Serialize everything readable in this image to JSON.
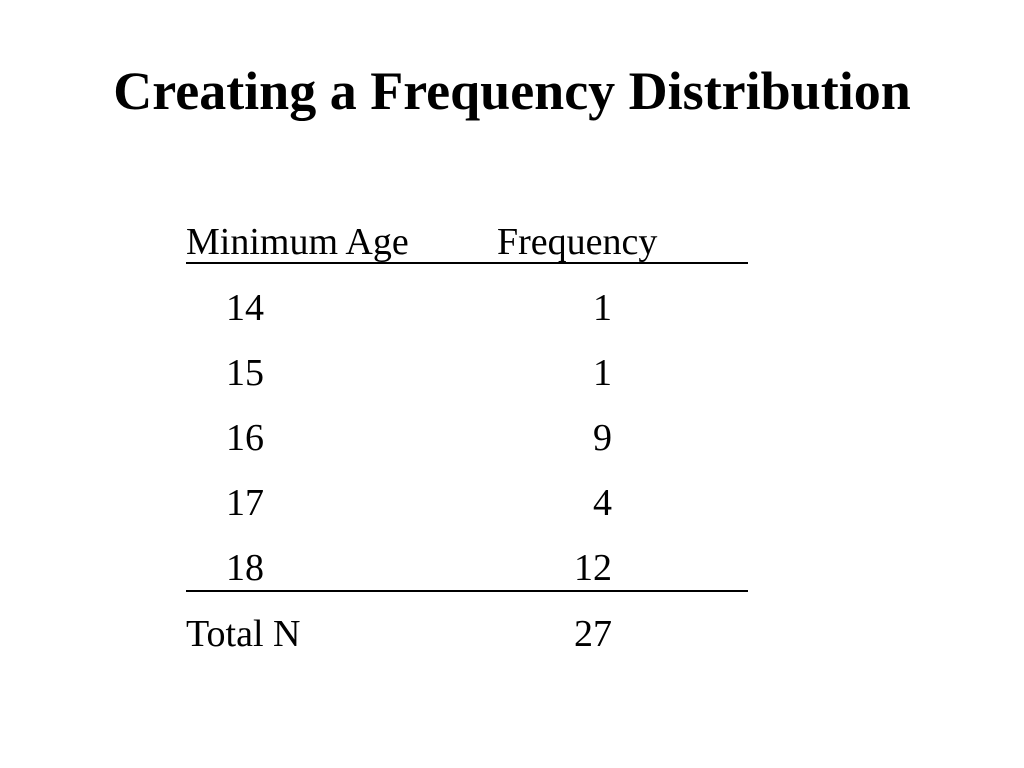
{
  "title": "Creating a Frequency Distribution",
  "table": {
    "header": [
      "Minimum Age",
      "Frequency"
    ],
    "rows": [
      [
        "14",
        "1"
      ],
      [
        "15",
        "1"
      ],
      [
        "16",
        "9"
      ],
      [
        "17",
        "4"
      ],
      [
        "18",
        "12"
      ]
    ],
    "total": [
      "Total N",
      "27"
    ]
  }
}
